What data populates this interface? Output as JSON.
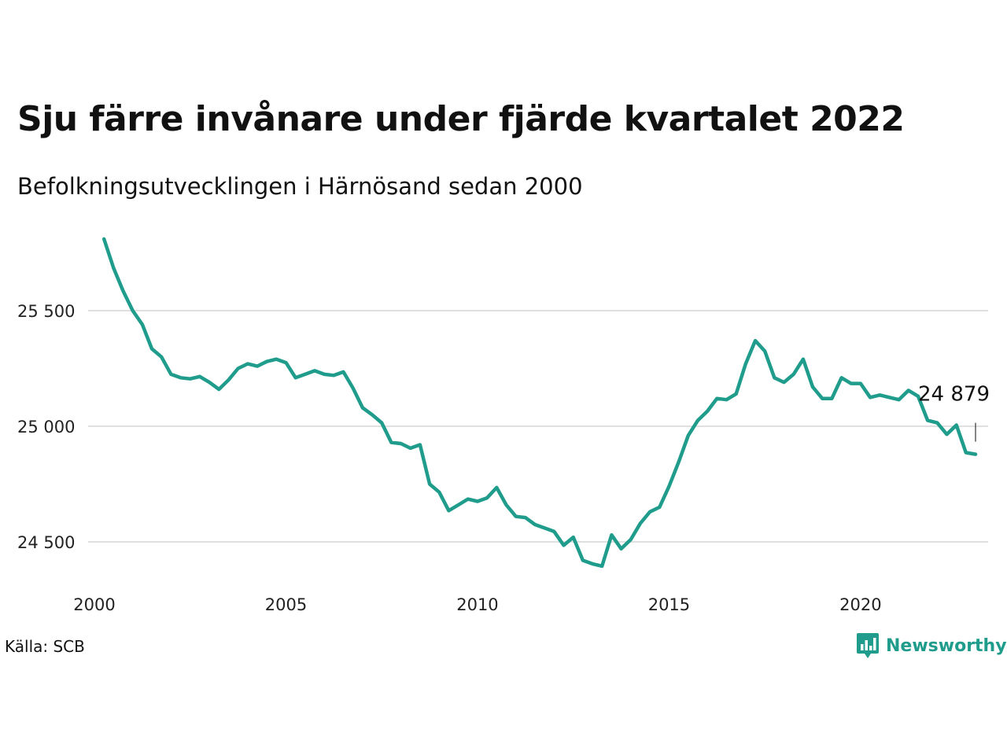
{
  "header": {
    "title": "Sju färre invånare under fjärde kvartalet 2022",
    "subtitle": "Befolkningsutvecklingen i Härnösand sedan 2000"
  },
  "footer": {
    "source": "Källa: SCB",
    "brand": "Newsworthy",
    "brand_icon": "bar-chart-speech-bubble-icon"
  },
  "colors": {
    "line": "#1f9c8b",
    "grid": "#e0e0e0",
    "text": "#111111"
  },
  "chart_data": {
    "type": "line",
    "title": "Sju färre invånare under fjärde kvartalet 2022",
    "subtitle": "Befolkningsutvecklingen i Härnösand sedan 2000",
    "xlabel": "",
    "ylabel": "",
    "x_ticks": [
      2000,
      2005,
      2010,
      2015,
      2020
    ],
    "x_tick_labels": [
      "2000",
      "2005",
      "2010",
      "2015",
      "2020"
    ],
    "y_ticks": [
      24500,
      25000,
      25500
    ],
    "y_tick_labels": [
      "24 500",
      "25 000",
      "25 500"
    ],
    "ylim": [
      24380,
      25810
    ],
    "xlim": [
      2000,
      2023
    ],
    "grid": true,
    "series": [
      {
        "x": [
          2000.25,
          2000.5,
          2000.75,
          2001.0,
          2001.25,
          2001.5,
          2001.75,
          2002.0,
          2002.25,
          2002.5,
          2002.75,
          2003.0,
          2003.25,
          2003.5,
          2003.75,
          2004.0,
          2004.25,
          2004.5,
          2004.75,
          2005.0,
          2005.25,
          2005.5,
          2005.75,
          2006.0,
          2006.25,
          2006.5,
          2006.75,
          2007.0,
          2007.25,
          2007.5,
          2007.75,
          2008.0,
          2008.25,
          2008.5,
          2008.75,
          2009.0,
          2009.25,
          2009.5,
          2009.75,
          2010.0,
          2010.25,
          2010.5,
          2010.75,
          2011.0,
          2011.25,
          2011.5,
          2011.75,
          2012.0,
          2012.25,
          2012.5,
          2012.75,
          2013.0,
          2013.25,
          2013.5,
          2013.75,
          2014.0,
          2014.25,
          2014.5,
          2014.75,
          2015.0,
          2015.25,
          2015.5,
          2015.75,
          2016.0,
          2016.25,
          2016.5,
          2016.75,
          2017.0,
          2017.25,
          2017.5,
          2017.75,
          2018.0,
          2018.25,
          2018.5,
          2018.75,
          2019.0,
          2019.25,
          2019.5,
          2019.75,
          2020.0,
          2020.25,
          2020.5,
          2020.75,
          2021.0,
          2021.25,
          2021.5,
          2021.75,
          2022.0,
          2022.25,
          2022.5,
          2022.75,
          2023.0
        ],
        "values": [
          25810,
          25685,
          25585,
          25500,
          25440,
          25335,
          25300,
          25225,
          25210,
          25205,
          25215,
          25190,
          25160,
          25200,
          25250,
          25270,
          25260,
          25280,
          25290,
          25275,
          25210,
          25225,
          25240,
          25225,
          25220,
          25235,
          25165,
          25080,
          25050,
          25015,
          24930,
          24925,
          24905,
          24920,
          24750,
          24715,
          24635,
          24660,
          24685,
          24675,
          24690,
          24735,
          24660,
          24610,
          24605,
          24575,
          24560,
          24545,
          24485,
          24520,
          24420,
          24405,
          24395,
          24530,
          24470,
          24510,
          24580,
          24630,
          24650,
          24740,
          24845,
          24960,
          25025,
          25065,
          25120,
          25115,
          25140,
          25270,
          25370,
          25325,
          25210,
          25190,
          25225,
          25290,
          25170,
          25120,
          25120,
          25210,
          25185,
          25185,
          25125,
          25135,
          25125,
          25115,
          25155,
          25130,
          25025,
          25015,
          24965,
          25005,
          24886,
          24879
        ]
      }
    ],
    "annotations": [
      {
        "x": 2023.0,
        "y": 24879,
        "text": "24 879"
      }
    ]
  }
}
